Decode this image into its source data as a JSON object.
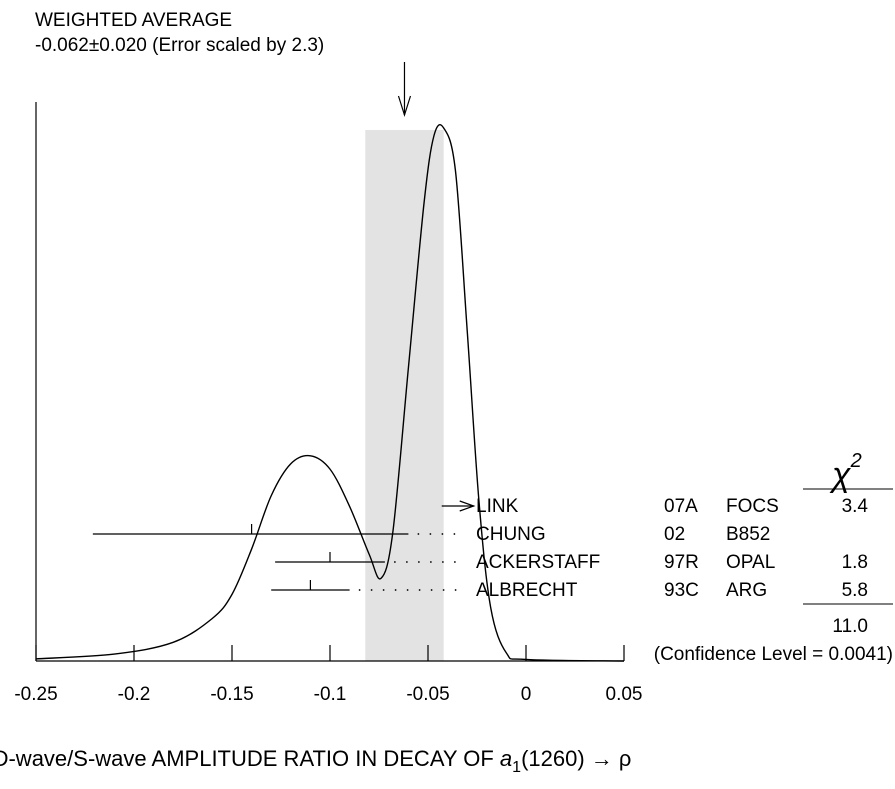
{
  "chart_data": {
    "type": "ideogram",
    "title": "WEIGHTED AVERAGE",
    "average": {
      "value": -0.062,
      "error": 0.02,
      "text": "-0.062±0.020 (Error scaled by 2.3)"
    },
    "xlabel": {
      "prefix": "D-wave/S-wave AMPLITUDE RATIO IN DECAY OF ",
      "particle": "a",
      "subscript": "1",
      "suffix": "(1260) → ρ"
    },
    "xlim": [
      -0.25,
      0.05
    ],
    "x_ticks": [
      -0.25,
      -0.2,
      -0.15,
      -0.1,
      -0.05,
      0,
      0.05
    ],
    "x_tick_labels": [
      "-0.25",
      "-0.2",
      "-0.15",
      "-0.1",
      "-0.05",
      "0",
      "0.05"
    ],
    "chi2_header": "χ",
    "chi2_header_sup": "2",
    "measurements": [
      {
        "name": "LINK",
        "year": "07A",
        "experiment": "FOCS",
        "chi2": "3.4",
        "value": -0.043,
        "lower_limit": true
      },
      {
        "name": "CHUNG",
        "year": "02",
        "experiment": "B852",
        "chi2": "",
        "value": -0.14,
        "err_lo": 0.081,
        "err_hi": 0.08
      },
      {
        "name": "ACKERSTAFF",
        "year": "97R",
        "experiment": "OPAL",
        "chi2": "1.8",
        "value": -0.1,
        "err_lo": 0.028,
        "err_hi": 0.028
      },
      {
        "name": "ALBRECHT",
        "year": "93C",
        "experiment": "ARG",
        "chi2": "5.8",
        "value": -0.11,
        "err_lo": 0.02,
        "err_hi": 0.02
      }
    ],
    "chi2_total": "11.0",
    "confidence_text": "(Confidence Level = 0.0041)",
    "curve": [
      [
        -0.25,
        0.004
      ],
      [
        -0.21,
        0.013
      ],
      [
        -0.18,
        0.035
      ],
      [
        -0.16,
        0.08
      ],
      [
        -0.15,
        0.125
      ],
      [
        -0.14,
        0.21
      ],
      [
        -0.13,
        0.31
      ],
      [
        -0.12,
        0.37
      ],
      [
        -0.11,
        0.385
      ],
      [
        -0.1,
        0.36
      ],
      [
        -0.09,
        0.29
      ],
      [
        -0.08,
        0.2
      ],
      [
        -0.074,
        0.155
      ],
      [
        -0.068,
        0.24
      ],
      [
        -0.06,
        0.55
      ],
      [
        -0.052,
        0.86
      ],
      [
        -0.047,
        0.985
      ],
      [
        -0.042,
        1.0
      ],
      [
        -0.036,
        0.92
      ],
      [
        -0.03,
        0.62
      ],
      [
        -0.024,
        0.3
      ],
      [
        -0.018,
        0.1
      ],
      [
        -0.01,
        0.015
      ],
      [
        0.0,
        0.003
      ],
      [
        0.05,
        0.0
      ]
    ]
  }
}
